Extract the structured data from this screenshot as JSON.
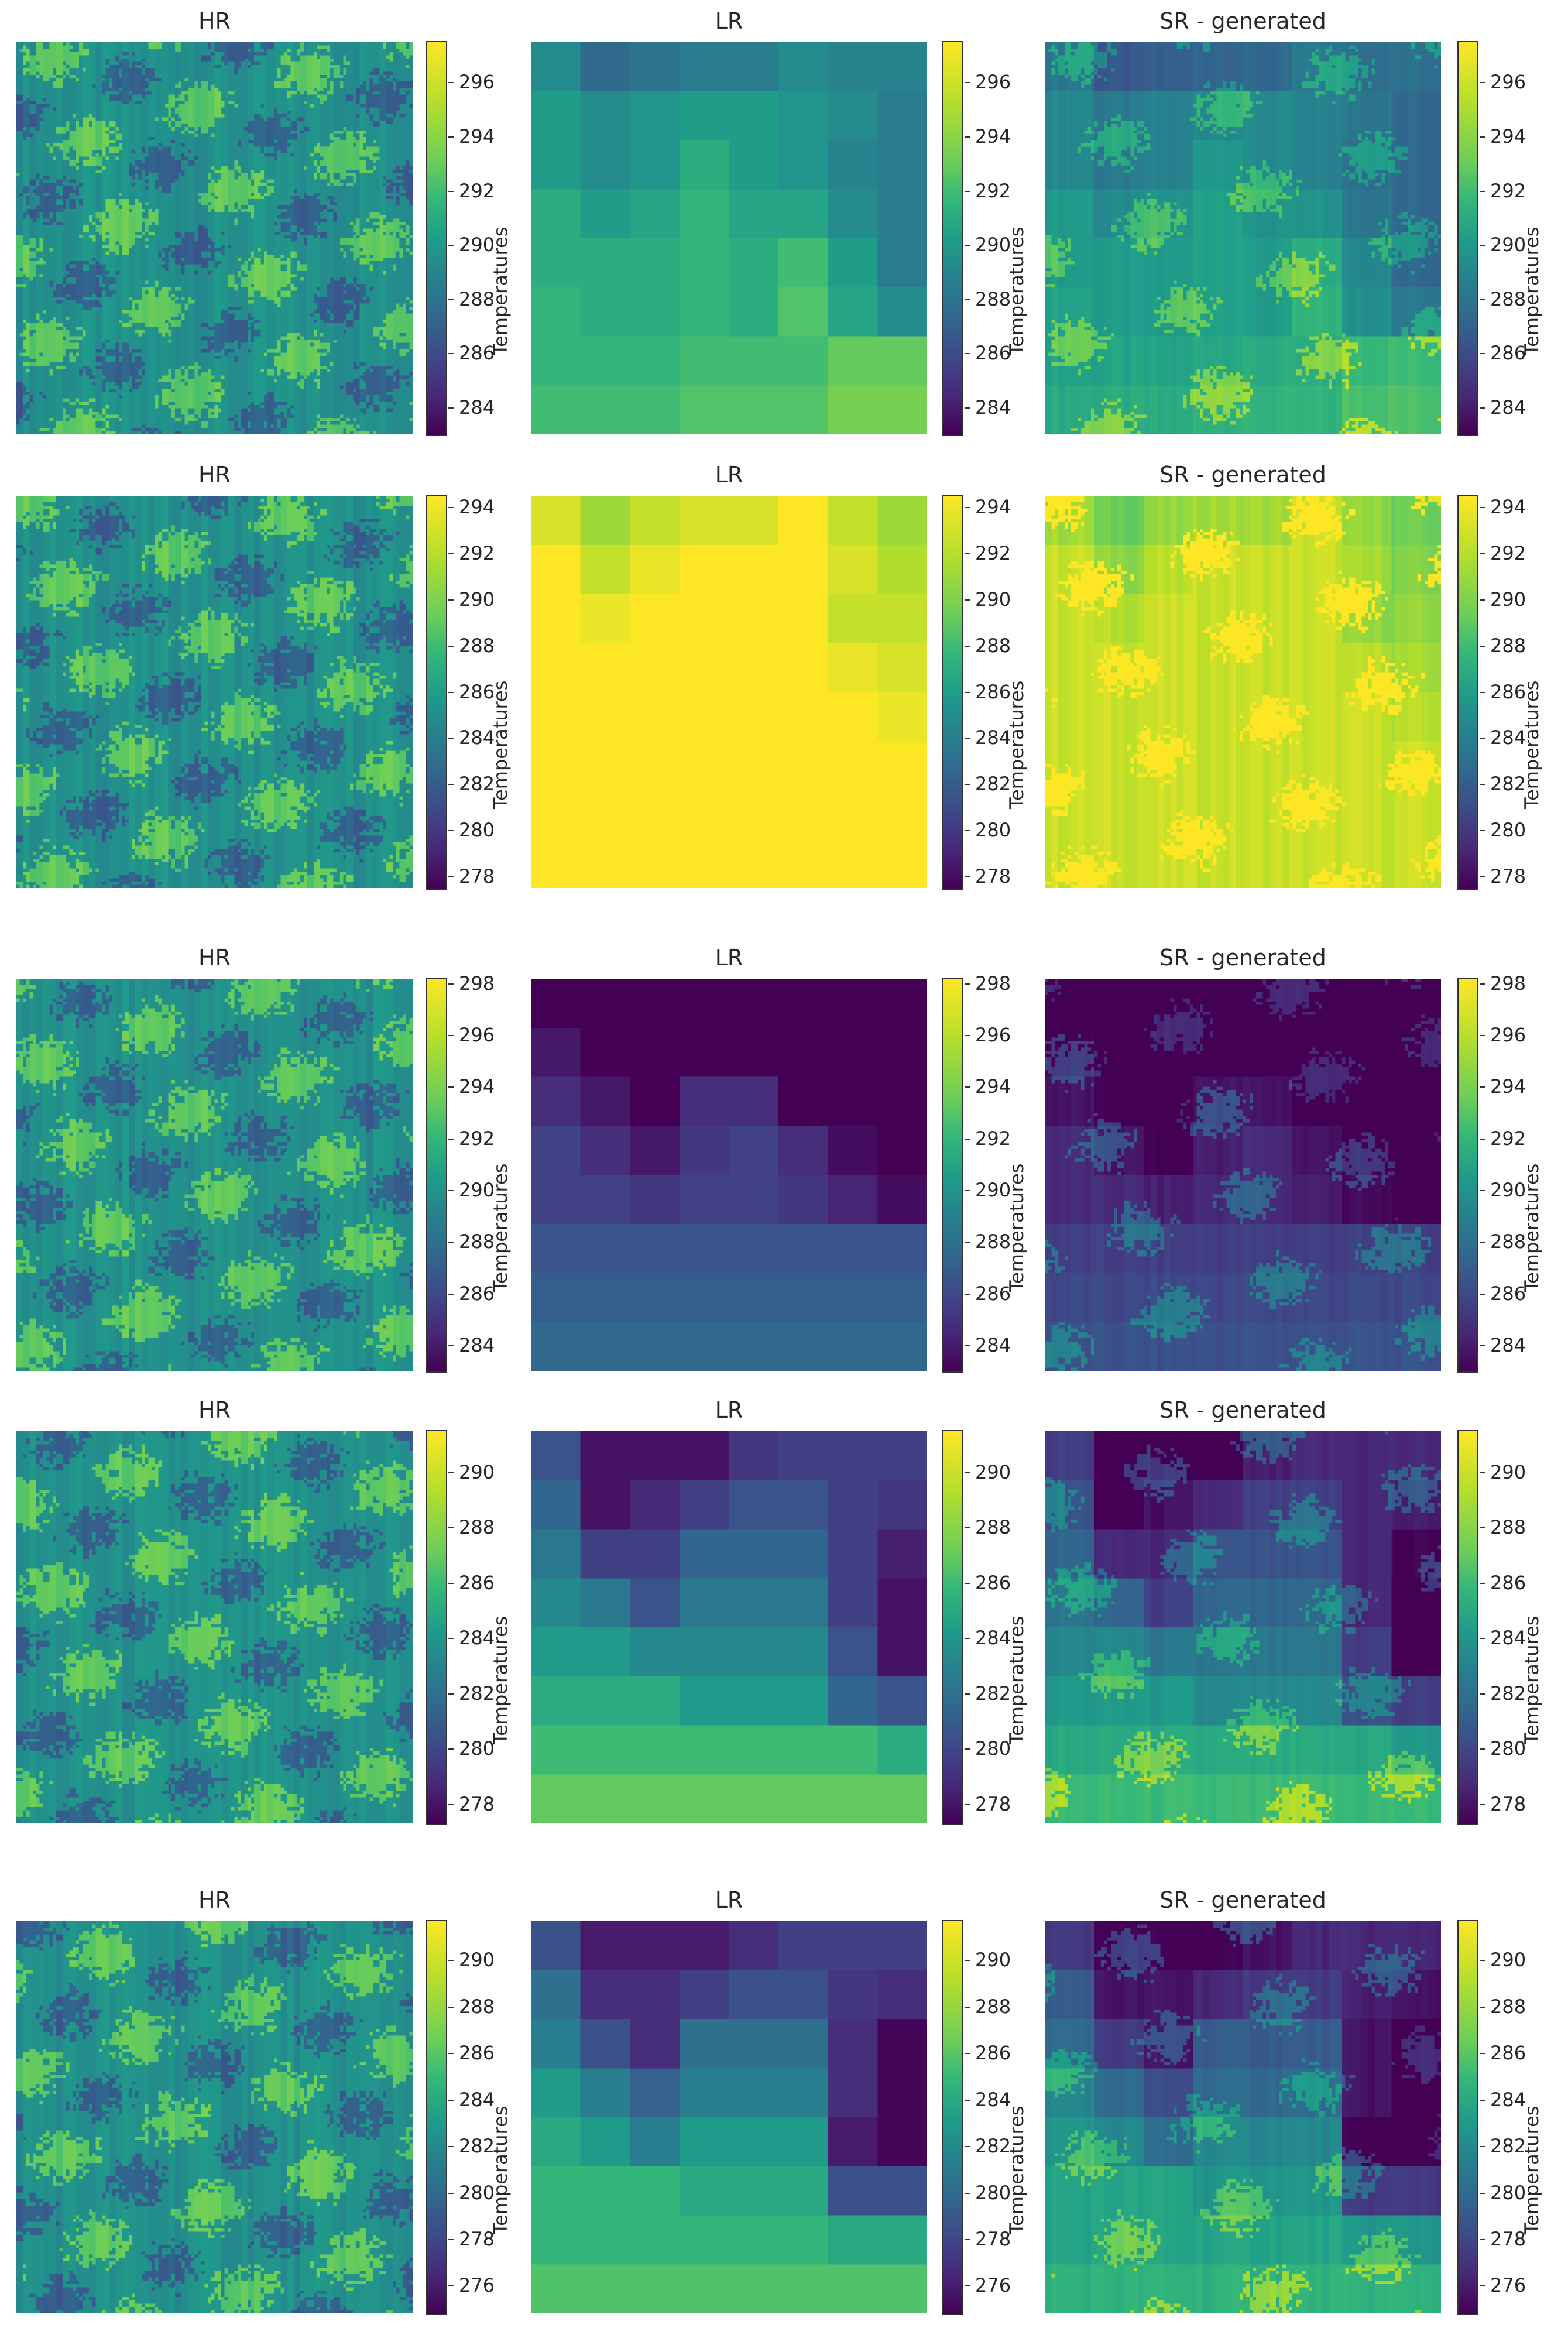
{
  "figure": {
    "column_titles": [
      "HR",
      "LR",
      "SR - generated"
    ],
    "colorbar_label": "Temperatures"
  },
  "chart_data": [
    {
      "type": "heatmap",
      "row": 1,
      "panels": [
        "HR",
        "LR",
        "SR - generated"
      ],
      "colormap": "viridis",
      "colorbar_label": "Temperatures",
      "clim": [
        283,
        297.5
      ],
      "ticks": [
        284,
        286,
        288,
        290,
        292,
        294,
        296
      ],
      "lr_grid": [
        [
          290,
          288,
          288.5,
          289,
          289,
          290,
          289.5,
          289.5
        ],
        [
          291,
          290,
          290.5,
          291,
          291,
          290.5,
          290,
          289
        ],
        [
          291,
          290,
          290.5,
          292,
          291,
          290.5,
          289.5,
          289
        ],
        [
          292,
          291,
          291.5,
          292.5,
          291.5,
          291.5,
          290,
          289
        ],
        [
          292,
          292,
          292,
          292.5,
          292,
          293,
          291,
          289
        ],
        [
          292.5,
          292,
          292,
          292.5,
          292,
          293.5,
          291.5,
          290
        ],
        [
          292.5,
          292.5,
          292.5,
          293,
          293,
          293,
          294,
          294
        ],
        [
          293,
          293,
          293,
          293.5,
          293.5,
          293.5,
          294.5,
          294.5
        ]
      ]
    },
    {
      "type": "heatmap",
      "row": 2,
      "panels": [
        "HR",
        "LR",
        "SR - generated"
      ],
      "colormap": "viridis",
      "colorbar_label": "Temperatures",
      "clim": [
        277.5,
        294.5
      ],
      "ticks": [
        278,
        280,
        282,
        284,
        286,
        288,
        290,
        292,
        294
      ],
      "lr_grid": [
        [
          293.5,
          292,
          293,
          293.5,
          293.5,
          294.5,
          293,
          292
        ],
        [
          294.5,
          293,
          294,
          294.5,
          294.5,
          294.5,
          293.5,
          292.5
        ],
        [
          294.5,
          294,
          294.5,
          294.5,
          294.5,
          294.5,
          293,
          293
        ],
        [
          294.5,
          294.5,
          294.5,
          294.5,
          294.5,
          294.5,
          294,
          293.5
        ],
        [
          294.5,
          294.5,
          294.5,
          294.5,
          294.5,
          294.5,
          294.5,
          294
        ],
        [
          294.5,
          294.5,
          294.5,
          294.5,
          294.5,
          294.5,
          294.5,
          294.5
        ],
        [
          294.5,
          294.5,
          294.5,
          294.5,
          294.5,
          294.5,
          294.5,
          294.5
        ],
        [
          294.5,
          294.5,
          294.5,
          294.5,
          294.5,
          294.5,
          294.5,
          294.5
        ]
      ]
    },
    {
      "type": "heatmap",
      "row": 3,
      "panels": [
        "HR",
        "LR",
        "SR - generated"
      ],
      "colormap": "viridis",
      "colorbar_label": "Temperatures",
      "clim": [
        283,
        298.2
      ],
      "ticks": [
        284,
        286,
        288,
        290,
        292,
        294,
        296,
        298
      ],
      "lr_grid": [
        [
          283,
          283,
          283,
          283,
          283,
          283,
          283,
          283
        ],
        [
          284,
          283,
          283,
          283,
          283,
          283,
          283,
          283
        ],
        [
          285,
          284,
          283,
          285,
          285,
          283,
          283,
          283
        ],
        [
          286,
          285,
          284,
          285.5,
          286,
          285,
          283.5,
          283
        ],
        [
          286,
          286,
          285.5,
          286,
          286,
          285.5,
          284.5,
          283.5
        ],
        [
          287,
          287,
          287,
          287,
          287,
          287,
          287,
          287
        ],
        [
          287.5,
          287.5,
          287.5,
          287.5,
          287.5,
          287.5,
          287.5,
          287.5
        ],
        [
          288,
          288,
          288,
          288,
          288,
          288,
          288,
          288
        ]
      ]
    },
    {
      "type": "heatmap",
      "row": 4,
      "panels": [
        "HR",
        "LR",
        "SR - generated"
      ],
      "colormap": "viridis",
      "colorbar_label": "Temperatures",
      "clim": [
        277.3,
        291.5
      ],
      "ticks": [
        278,
        280,
        282,
        284,
        286,
        288,
        290
      ],
      "lr_grid": [
        [
          281,
          278,
          278,
          278,
          279.5,
          280,
          280,
          280
        ],
        [
          282,
          278,
          279,
          280,
          281,
          281,
          280,
          279.5
        ],
        [
          283,
          280,
          280,
          282,
          282,
          282,
          280,
          278.5
        ],
        [
          284,
          283,
          281,
          283,
          283,
          283,
          280,
          278
        ],
        [
          285,
          285,
          284,
          284,
          284,
          284,
          281,
          278
        ],
        [
          286,
          286,
          286,
          285,
          285,
          285,
          282,
          281
        ],
        [
          287,
          287,
          287,
          287,
          287,
          287,
          287,
          286
        ],
        [
          288,
          288,
          288,
          288,
          288,
          288,
          288,
          288
        ]
      ]
    },
    {
      "type": "heatmap",
      "row": 5,
      "panels": [
        "HR",
        "LR",
        "SR - generated"
      ],
      "colormap": "viridis",
      "colorbar_label": "Temperatures",
      "clim": [
        274.8,
        291.7
      ],
      "ticks": [
        276,
        278,
        280,
        282,
        284,
        286,
        288,
        290
      ],
      "lr_grid": [
        [
          279,
          276,
          276,
          276,
          277,
          278,
          278,
          278
        ],
        [
          281,
          277,
          277,
          278,
          279,
          279,
          277.5,
          277
        ],
        [
          282,
          279,
          277,
          281,
          281,
          281,
          277,
          275
        ],
        [
          284,
          282,
          280,
          282,
          282,
          282,
          277,
          275
        ],
        [
          285,
          284,
          282,
          284,
          284,
          284,
          276,
          275
        ],
        [
          286,
          286,
          286,
          285,
          285,
          285,
          279,
          279
        ],
        [
          286,
          286,
          286,
          286,
          286,
          286,
          285,
          285
        ],
        [
          287,
          287,
          287,
          287,
          287,
          287,
          287,
          287
        ]
      ]
    }
  ]
}
